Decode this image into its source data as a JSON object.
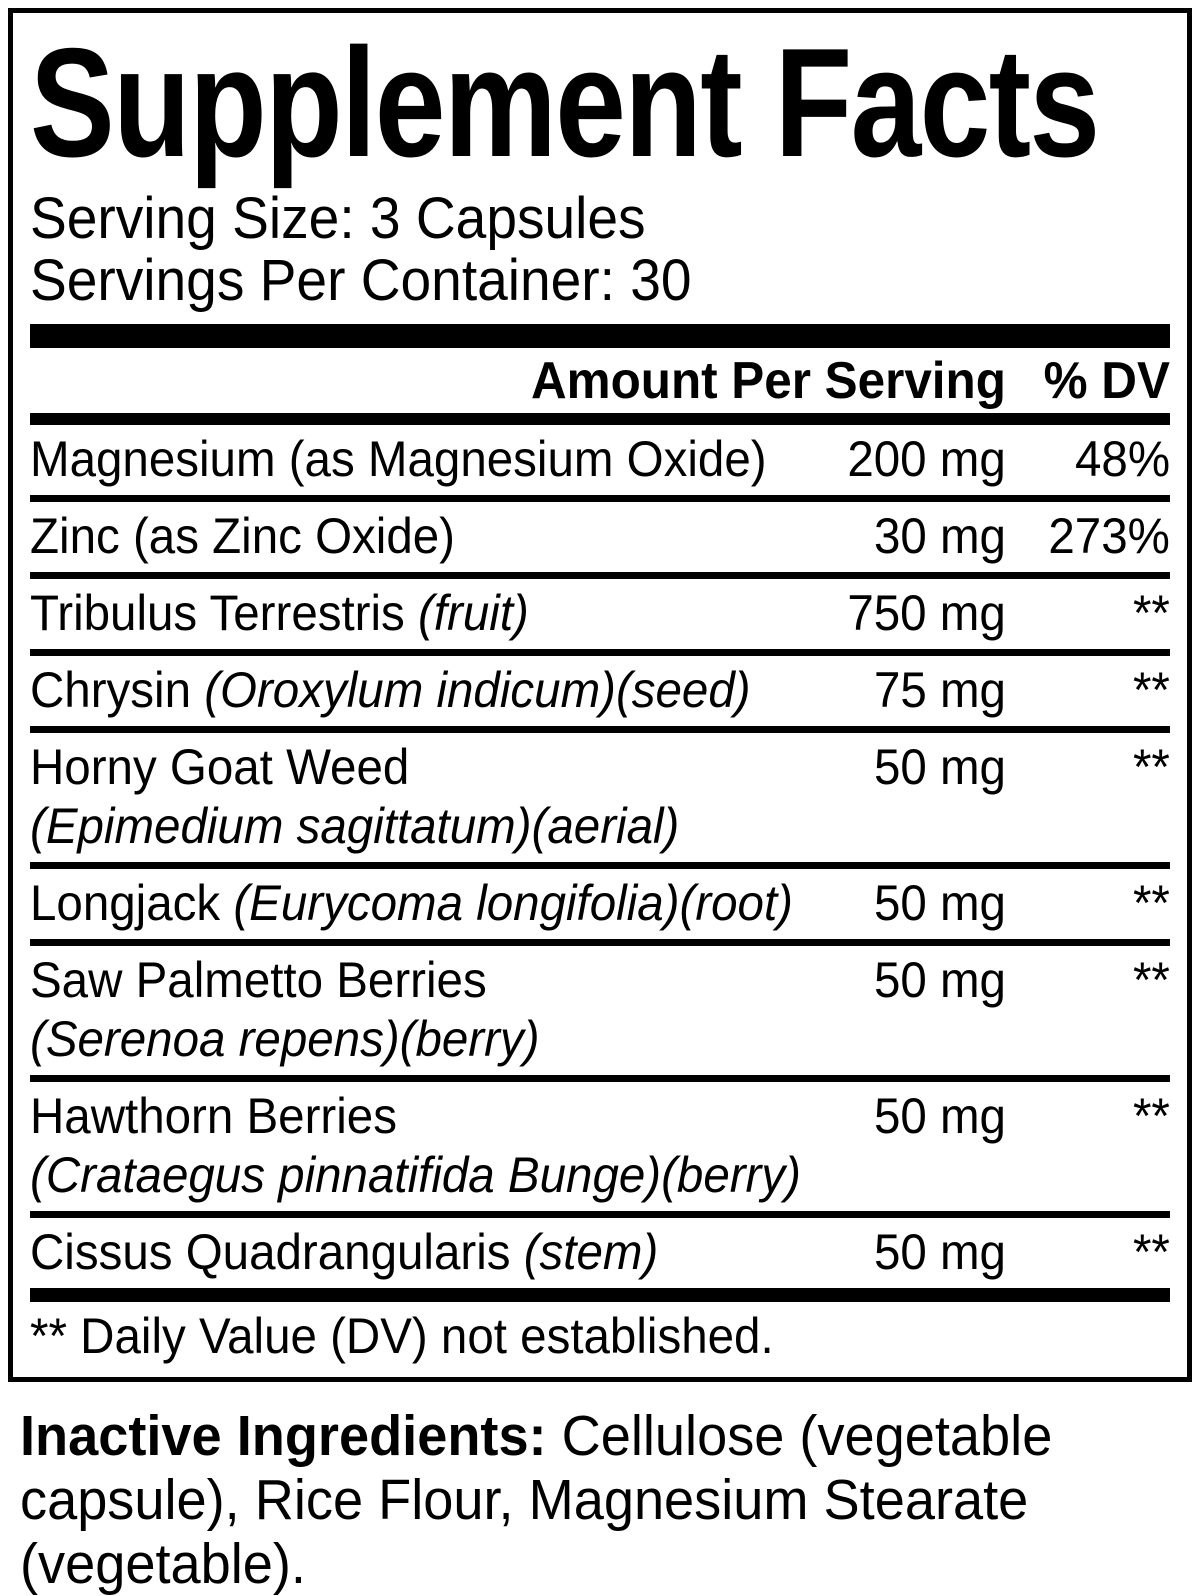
{
  "title": "Supplement Facts",
  "serving": {
    "size_line": "Serving Size: 3 Capsules",
    "per_container_line": "Servings Per Container: 30"
  },
  "table": {
    "header": {
      "amount": "Amount Per Serving",
      "dv": "% DV"
    },
    "rows": [
      {
        "name": "Magnesium",
        "detail": "(as Magnesium Oxide)",
        "amount": "200 mg",
        "dv": "48%"
      },
      {
        "name": "Zinc",
        "detail": "(as Zinc Oxide)",
        "amount": "30 mg",
        "dv": "273%"
      },
      {
        "name": "Tribulus Terrestris",
        "detail": "(fruit)",
        "amount": "750 mg",
        "dv": "**"
      },
      {
        "name": "Chrysin",
        "detail": "(Oroxylum indicum)(seed)",
        "amount": "75 mg",
        "dv": "**"
      },
      {
        "name": "Horny Goat Weed",
        "subline": "(Epimedium sagittatum)(aerial)",
        "amount": "50 mg",
        "dv": "**"
      },
      {
        "name": "Longjack",
        "detail": "(Eurycoma longifolia)(root)",
        "amount": "50 mg",
        "dv": "**"
      },
      {
        "name": "Saw Palmetto Berries",
        "subline": "(Serenoa repens)(berry)",
        "amount": "50 mg",
        "dv": "**"
      },
      {
        "name": "Hawthorn Berries",
        "subline": "(Crataegus pinnatifida Bunge)(berry)",
        "amount": "50 mg",
        "dv": "**"
      },
      {
        "name": "Cissus Quadrangularis",
        "detail": "(stem)",
        "amount": "50 mg",
        "dv": "**"
      }
    ],
    "footnote": "** Daily Value (DV) not established."
  },
  "inactive": {
    "label": "Inactive Ingredients:",
    "line1_rest": "Cellulose (vegetable",
    "line2": "capsule), Rice Flour, Magnesium Stearate",
    "line3": "(vegetable)."
  },
  "colors": {
    "ink": "#000000",
    "paper": "#ffffff"
  }
}
